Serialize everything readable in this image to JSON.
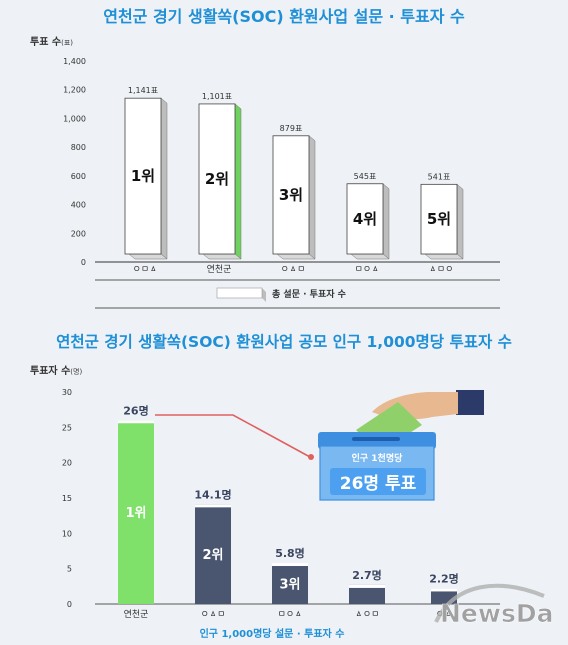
{
  "chart_data": [
    {
      "type": "bar",
      "title": "연천군 경기 생활쏙(SOC) 환원사업 설문 · 투표자 수",
      "ylabel": "투표 수",
      "yunit": "(표)",
      "ylim": [
        0,
        1400
      ],
      "yticks": [
        "0",
        "200",
        "400",
        "600",
        "800",
        "1,000",
        "1,200",
        "1,400"
      ],
      "categories": [
        "ㅇㅁㅿ",
        "연천군",
        "ㅇㅿㅁ",
        "ㅁㅇㅿ",
        "ㅿㅁㅇ"
      ],
      "values": [
        1141,
        1101,
        879,
        545,
        541
      ],
      "value_labels": [
        "1,141표",
        "1,101표",
        "879표",
        "545표",
        "541표"
      ],
      "ranks": [
        "1위",
        "2위",
        "3위",
        "4위",
        "5위"
      ],
      "highlight_index": 1,
      "legend": "총 설문 · 투표자 수",
      "legend_position": "bottom",
      "grid": false,
      "colors": {
        "bar": "#ffffff",
        "highlight": "#6fd160",
        "side": "#bdbdbd"
      }
    },
    {
      "type": "bar",
      "title": "연천군 경기 생활쏙(SOC) 환원사업 공모 인구 1,000명당 투표자 수",
      "ylabel": "투표자 수",
      "yunit": "(명)",
      "ylim": [
        0,
        30
      ],
      "yticks": [
        "0",
        "5",
        "10",
        "15",
        "20",
        "25",
        "30"
      ],
      "categories": [
        "연천군",
        "ㅇㅿㅁ",
        "ㅁㅇㅿ",
        "ㅿㅇㅁ",
        "ㅇㅿ"
      ],
      "values": [
        26,
        14.1,
        5.8,
        2.7,
        2.2
      ],
      "value_labels": [
        "26명",
        "14.1명",
        "5.8명",
        "2.7명",
        "2.2명"
      ],
      "ranks": [
        "1위",
        "2위",
        "3위",
        "",
        ""
      ],
      "xlabel": "인구 1,000명당 설문 · 투표자 수",
      "grid": false,
      "colors": {
        "highlight": "#7fe06a",
        "bar": "#4a5570",
        "line": "#e06060"
      },
      "callout": {
        "top": "인구 1천명당",
        "main": "26명 투표"
      }
    }
  ],
  "watermark": "NewsDa"
}
